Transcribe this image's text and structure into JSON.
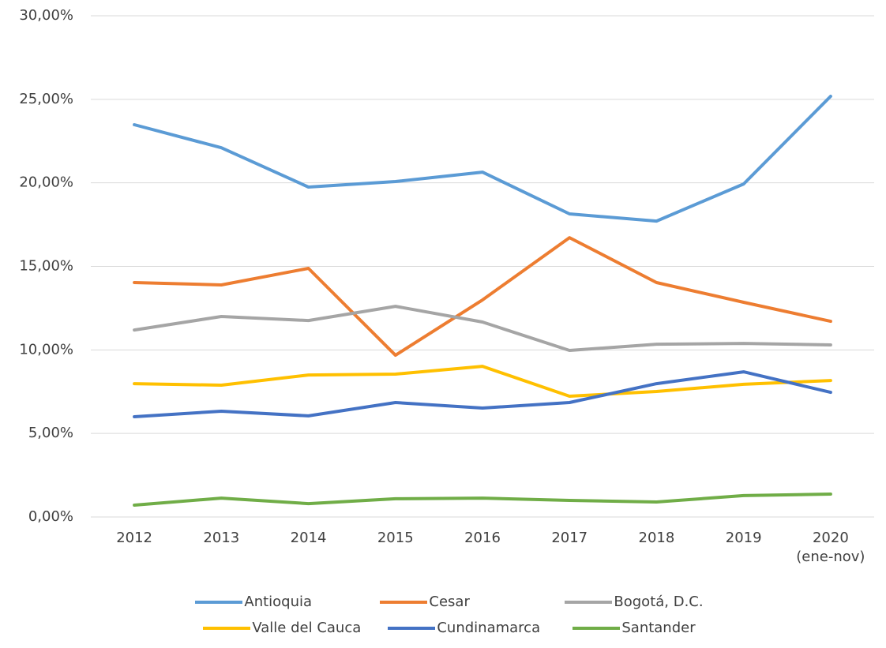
{
  "chart_data": {
    "type": "line",
    "categories": [
      "2012",
      "2013",
      "2014",
      "2015",
      "2016",
      "2017",
      "2018",
      "2019",
      "2020\n(ene-nov)"
    ],
    "series": [
      {
        "name": "Antioquia",
        "color": "#5b9bd5",
        "values": [
          23.48,
          22.1,
          19.75,
          20.08,
          20.64,
          18.14,
          17.71,
          19.93,
          25.18
        ]
      },
      {
        "name": "Cesar",
        "color": "#ed7d31",
        "values": [
          14.03,
          13.89,
          14.88,
          9.68,
          12.99,
          16.72,
          14.03,
          12.85,
          11.71
        ]
      },
      {
        "name": "Bogotá, D.C.",
        "color": "#a5a5a5",
        "values": [
          11.19,
          12.0,
          11.76,
          12.61,
          11.67,
          9.97,
          10.34,
          10.39,
          10.3
        ]
      },
      {
        "name": "Valle del Cauca",
        "color": "#ffc000",
        "values": [
          7.98,
          7.89,
          8.5,
          8.55,
          9.02,
          7.23,
          7.51,
          7.94,
          8.17
        ]
      },
      {
        "name": "Cundinamarca",
        "color": "#4472c4",
        "values": [
          6.0,
          6.33,
          6.05,
          6.85,
          6.52,
          6.85,
          7.98,
          8.69,
          7.46
        ]
      },
      {
        "name": "Santander",
        "color": "#70ad47",
        "values": [
          0.71,
          1.13,
          0.8,
          1.09,
          1.13,
          0.99,
          0.9,
          1.28,
          1.37
        ]
      }
    ],
    "ylim": [
      0,
      30
    ],
    "yticks": [
      {
        "value": 0,
        "label": "0,00%"
      },
      {
        "value": 5,
        "label": "5,00%"
      },
      {
        "value": 10,
        "label": "10,00%"
      },
      {
        "value": 15,
        "label": "15,00%"
      },
      {
        "value": 20,
        "label": "20,00%"
      },
      {
        "value": 25,
        "label": "25,00%"
      },
      {
        "value": 30,
        "label": "30,00%"
      }
    ],
    "grid": true,
    "legend": "bottom"
  }
}
